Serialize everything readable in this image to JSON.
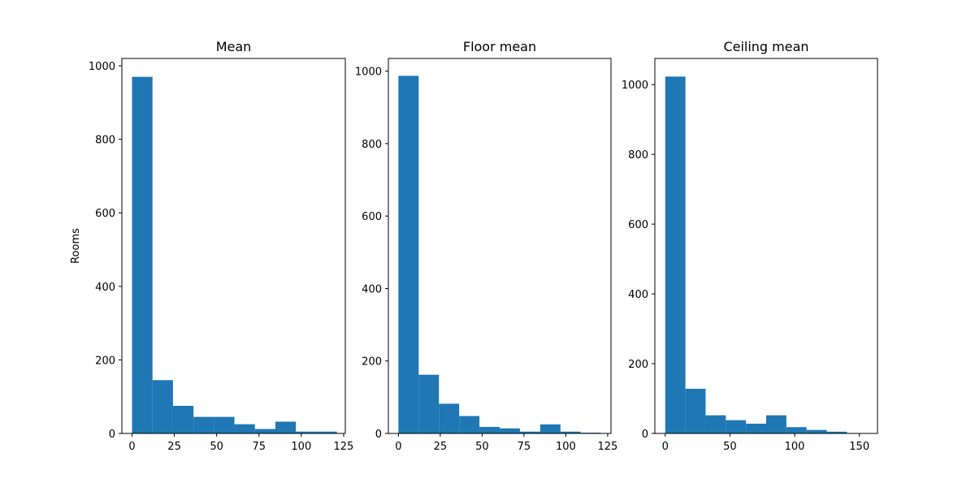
{
  "chart_data": [
    {
      "type": "bar",
      "title": "Mean",
      "ylabel": "Rooms",
      "xlabel": "",
      "bar_color": "#1f77b4",
      "xlim": [
        -6,
        126
      ],
      "ylim": [
        0,
        1020
      ],
      "xticks": [
        0,
        25,
        50,
        75,
        100,
        125
      ],
      "yticks": [
        0,
        200,
        400,
        600,
        800,
        1000
      ],
      "bin_edges": [
        0,
        12.1,
        24.2,
        36.3,
        48.4,
        60.5,
        72.6,
        84.7,
        96.8,
        108.9,
        121
      ],
      "values": [
        970,
        145,
        75,
        45,
        45,
        25,
        12,
        32,
        5,
        5
      ]
    },
    {
      "type": "bar",
      "title": "Floor mean",
      "ylabel": "",
      "xlabel": "",
      "bar_color": "#1f77b4",
      "xlim": [
        -6,
        127
      ],
      "ylim": [
        0,
        1035
      ],
      "xticks": [
        0,
        25,
        50,
        75,
        100,
        125
      ],
      "yticks": [
        0,
        200,
        400,
        600,
        800,
        1000
      ],
      "bin_edges": [
        0,
        12.1,
        24.2,
        36.3,
        48.4,
        60.5,
        72.6,
        84.7,
        96.8,
        108.9,
        121
      ],
      "values": [
        987,
        162,
        82,
        48,
        18,
        14,
        5,
        25,
        5,
        2
      ]
    },
    {
      "type": "bar",
      "title": "Ceiling mean",
      "ylabel": "",
      "xlabel": "",
      "bar_color": "#1f77b4",
      "xlim": [
        -8,
        164
      ],
      "ylim": [
        0,
        1075
      ],
      "xticks": [
        0,
        50,
        100,
        150
      ],
      "yticks": [
        0,
        200,
        400,
        600,
        800,
        1000
      ],
      "bin_edges": [
        0,
        15.6,
        31.2,
        46.8,
        62.4,
        78,
        93.6,
        109.2,
        124.8,
        140.4,
        156
      ],
      "values": [
        1023,
        128,
        52,
        38,
        28,
        52,
        18,
        10,
        5,
        1
      ]
    }
  ]
}
